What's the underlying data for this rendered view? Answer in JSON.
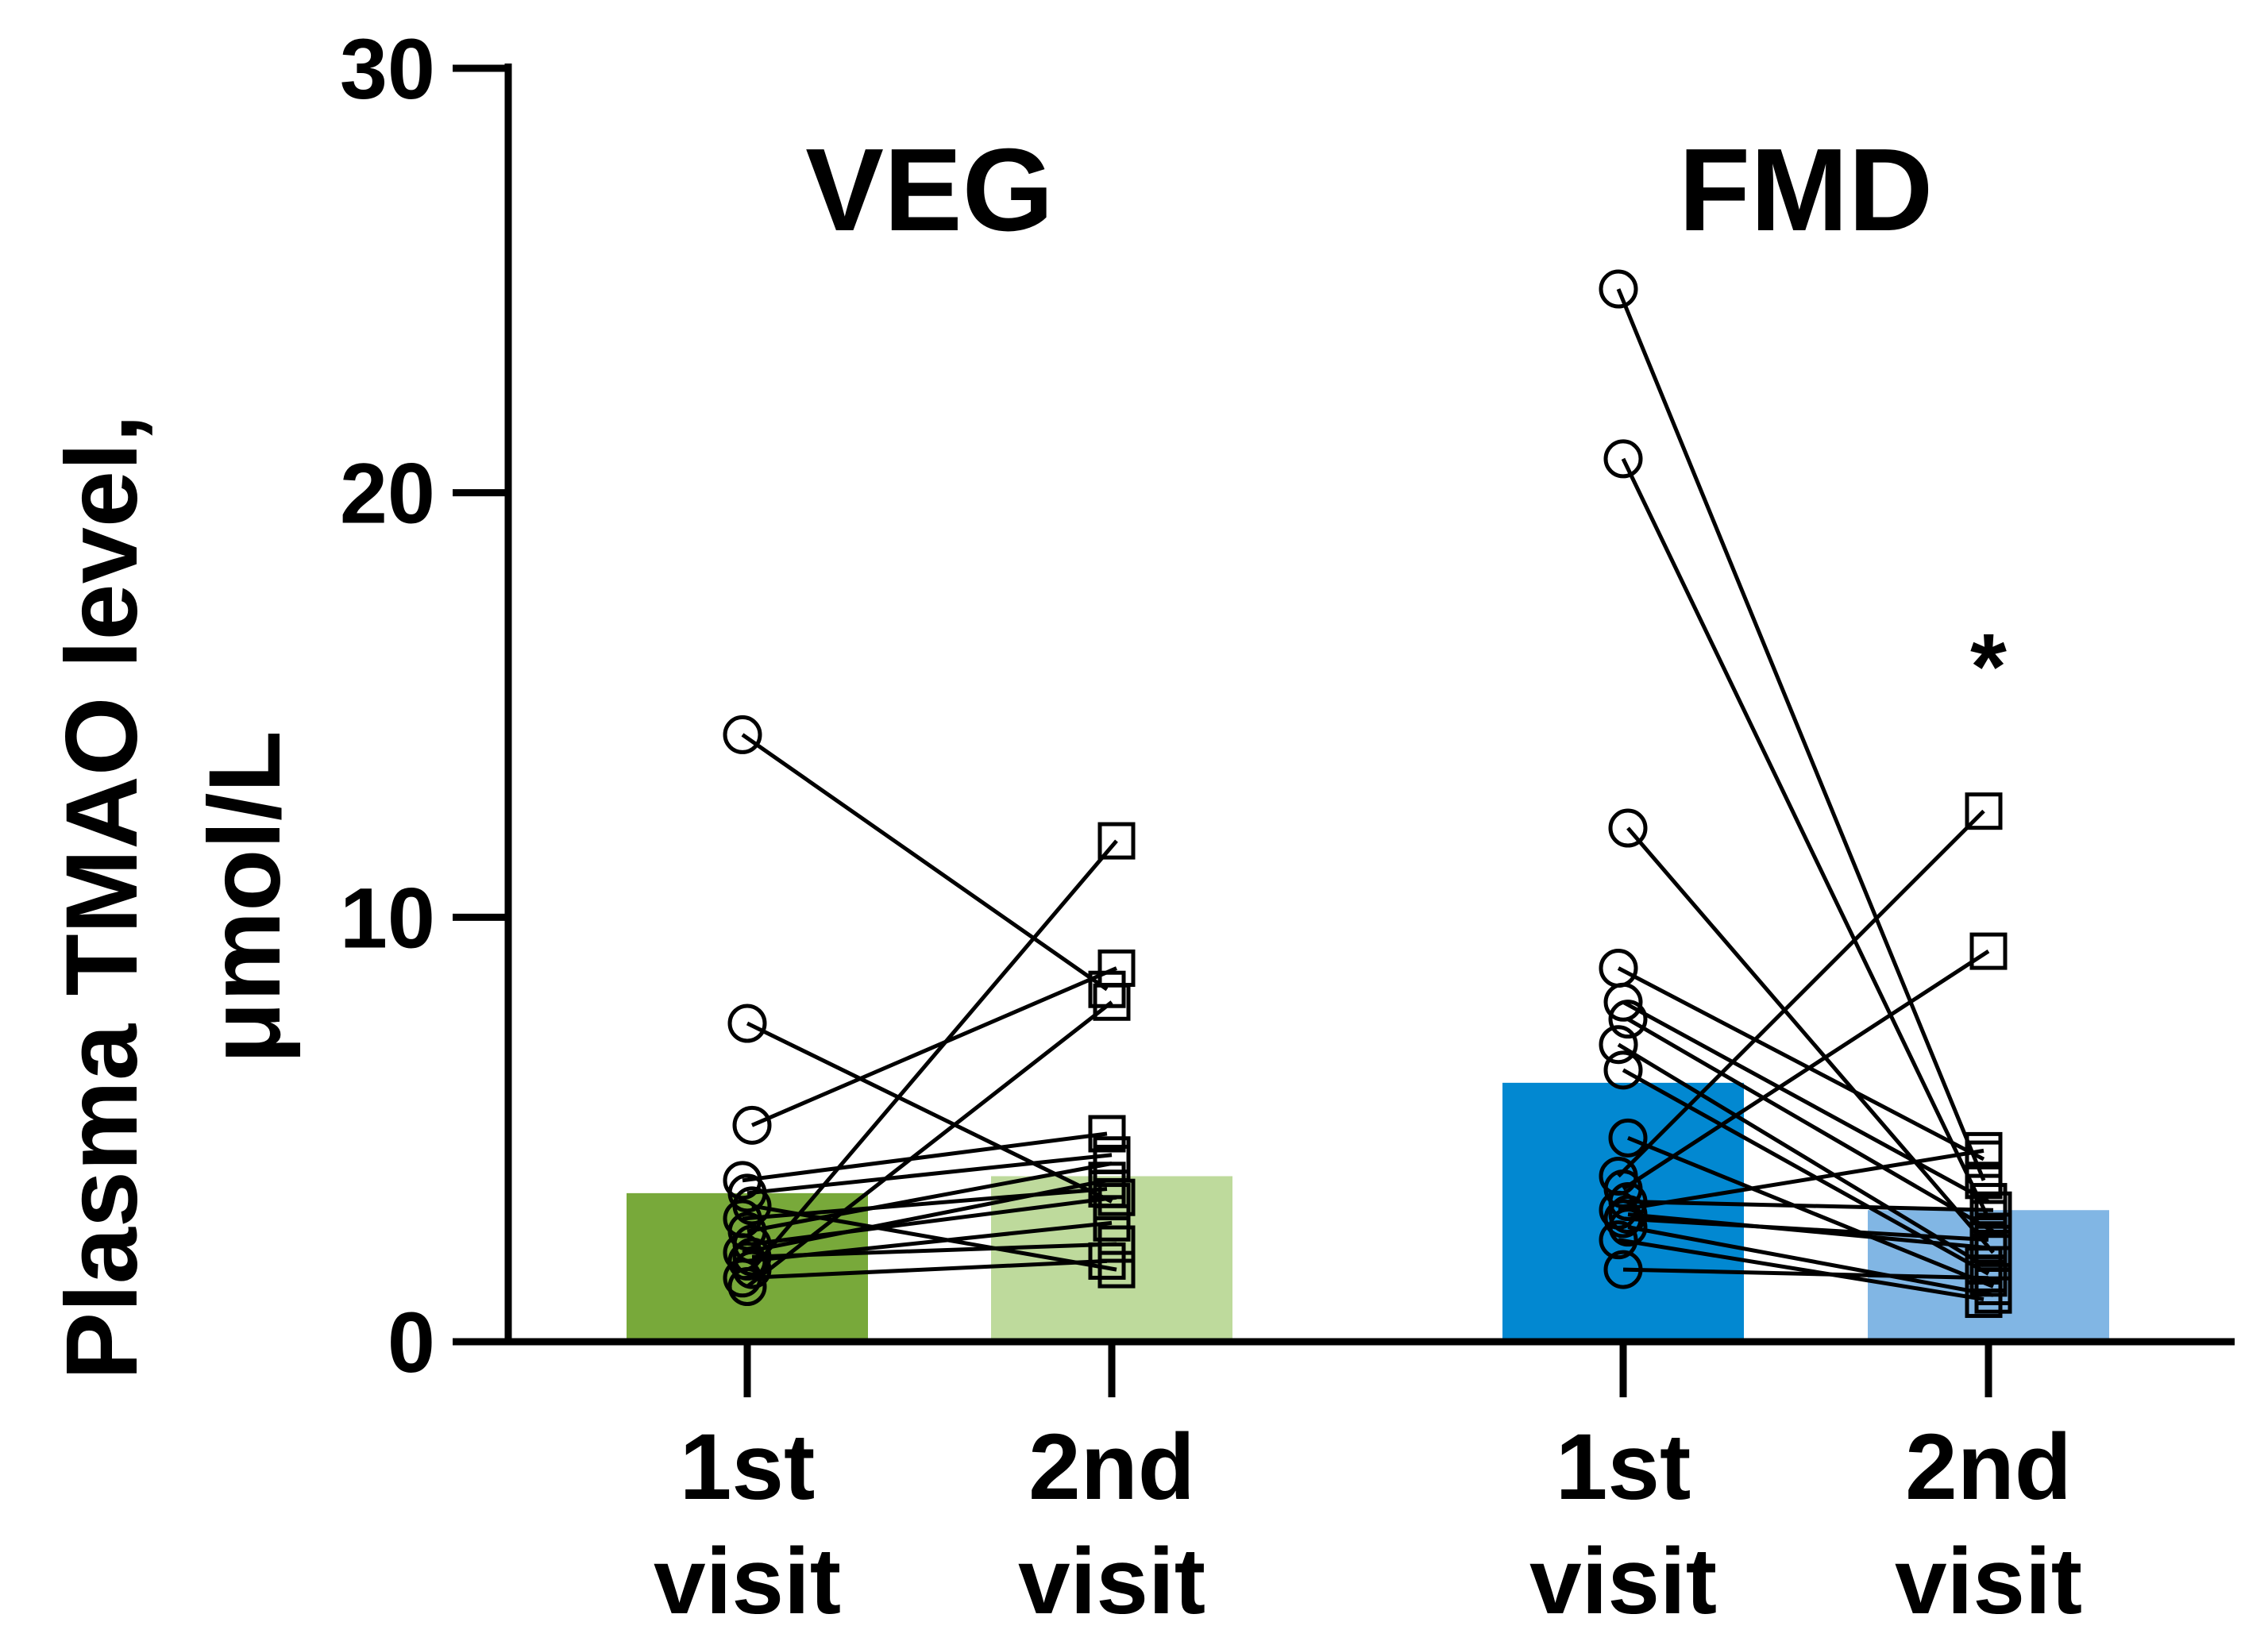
{
  "chart_data": {
    "type": "bar",
    "ylabel_line1": "Plasma TMAO level,",
    "ylabel_line2": "μmol/L",
    "ylim": [
      0,
      30
    ],
    "yticks": [
      0,
      10,
      20,
      30
    ],
    "ytick_labels": [
      "0",
      "10",
      "20",
      "30"
    ],
    "groups": [
      {
        "name": "VEG",
        "bars": [
          {
            "line1": "1st",
            "line2": "visit",
            "value": 3.5,
            "color": "#78A93A",
            "marker": "circle"
          },
          {
            "line1": "2nd",
            "line2": "visit",
            "value": 3.9,
            "color": "#BEDA9C",
            "marker": "square"
          }
        ],
        "pairs": [
          [
            14.3,
            8.3
          ],
          [
            7.5,
            3.3
          ],
          [
            5.1,
            8.8
          ],
          [
            3.8,
            4.9
          ],
          [
            3.5,
            4.4
          ],
          [
            3.2,
            1.7
          ],
          [
            2.9,
            3.6
          ],
          [
            2.6,
            4.2
          ],
          [
            2.3,
            3.4
          ],
          [
            2.1,
            3.8
          ],
          [
            1.9,
            2.8
          ],
          [
            1.7,
            11.8
          ],
          [
            1.5,
            1.9
          ],
          [
            1.3,
            8.0
          ],
          [
            2.0,
            2.3
          ]
        ]
      },
      {
        "name": "FMD",
        "bars": [
          {
            "line1": "1st",
            "line2": "visit",
            "value": 6.1,
            "color": "#0288D1",
            "marker": "circle"
          },
          {
            "line1": "2nd",
            "line2": "visit",
            "value": 3.1,
            "color": "#81B6E4",
            "marker": "square"
          }
        ],
        "significance": "*",
        "pairs": [
          [
            24.8,
            3.8
          ],
          [
            20.8,
            2.9
          ],
          [
            12.1,
            2.1
          ],
          [
            8.8,
            4.3
          ],
          [
            8.0,
            3.3
          ],
          [
            7.6,
            2.6
          ],
          [
            7.0,
            1.8
          ],
          [
            6.4,
            1.6
          ],
          [
            4.8,
            1.3
          ],
          [
            3.9,
            12.5
          ],
          [
            3.6,
            9.2
          ],
          [
            3.3,
            3.1
          ],
          [
            3.1,
            4.5
          ],
          [
            2.9,
            2.4
          ],
          [
            2.7,
            1.1
          ],
          [
            2.4,
            1.0
          ],
          [
            1.7,
            1.5
          ],
          [
            3.0,
            2.2
          ]
        ]
      }
    ]
  }
}
